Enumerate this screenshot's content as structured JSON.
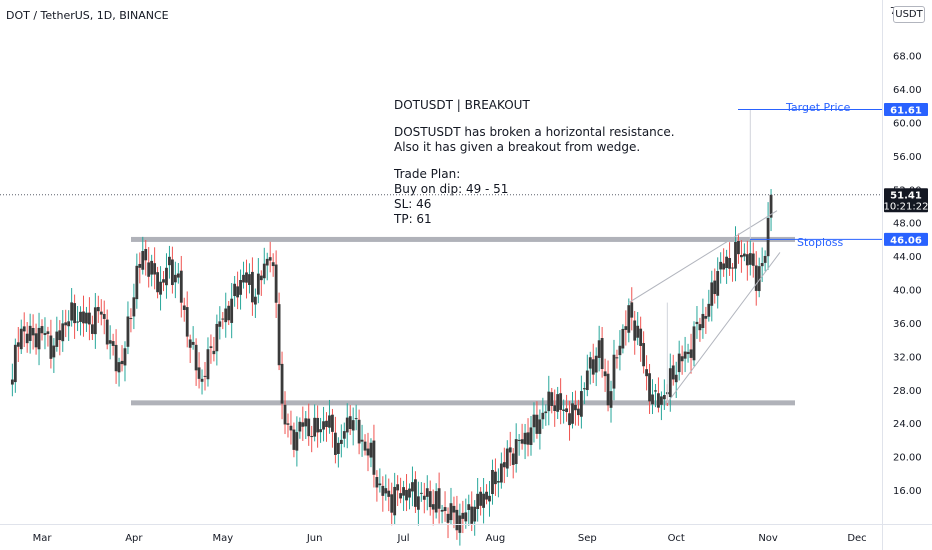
{
  "symbol_title": "DOT / TetherUS, 1D, BINANCE",
  "currency": "USDT",
  "top_tick": "7",
  "note": {
    "heading": "DOTUSDT | BREAKOUT",
    "line1": "DOSTUSDT has broken a horizontal resistance.",
    "line2": "Also it has given a breakout from wedge.",
    "line3": "Trade Plan:",
    "line4": "Buy on dip: 49 - 51",
    "line5": "SL: 46",
    "line6": "TP: 61"
  },
  "labels": {
    "target": "Target Price",
    "stoploss": "Stoploss"
  },
  "price_tags": {
    "target": "61.61",
    "last": "51.41",
    "countdown": "10:21:22",
    "stop": "46.06"
  },
  "colors": {
    "up": "#26a69a",
    "down": "#ef5350",
    "body": "#3a3a3a",
    "accent": "#2962ff",
    "level": "#9598a1"
  },
  "chart_data": {
    "type": "candlestick",
    "title": "DOT / TetherUS, 1D, BINANCE",
    "ylim": [
      12,
      74
    ],
    "y_ticks": [
      "68.00",
      "64.00",
      "60.00",
      "56.00",
      "52.00",
      "48.00",
      "44.00",
      "40.00",
      "36.00",
      "32.00",
      "28.00",
      "24.00",
      "20.00",
      "16.00"
    ],
    "x_ticks": [
      "Mar",
      "Apr",
      "May",
      "Jun",
      "Jul",
      "Aug",
      "Sep",
      "Oct",
      "Nov",
      "Dec"
    ],
    "close_path": [
      [
        "Feb 19",
        30.0
      ],
      [
        "Feb 22",
        35.5
      ],
      [
        "Feb 25",
        34.2
      ],
      [
        "Mar 1",
        35.0
      ],
      [
        "Mar 5",
        33.0
      ],
      [
        "Mar 9",
        36.5
      ],
      [
        "Mar 13",
        37.0
      ],
      [
        "Mar 17",
        36.0
      ],
      [
        "Mar 21",
        37.5
      ],
      [
        "Mar 25",
        32.0
      ],
      [
        "Mar 28",
        31.0
      ],
      [
        "Apr 1",
        40.0
      ],
      [
        "Apr 4",
        44.5
      ],
      [
        "Apr 7",
        42.0
      ],
      [
        "Apr 10",
        40.5
      ],
      [
        "Apr 13",
        43.0
      ],
      [
        "Apr 16",
        41.0
      ],
      [
        "Apr 18",
        37.0
      ],
      [
        "Apr 21",
        32.0
      ],
      [
        "Apr 24",
        29.0
      ],
      [
        "Apr 27",
        33.0
      ],
      [
        "Apr 30",
        36.0
      ],
      [
        "May 4",
        38.5
      ],
      [
        "May 8",
        42.0
      ],
      [
        "May 11",
        39.5
      ],
      [
        "May 14",
        41.5
      ],
      [
        "May 17",
        45.0
      ],
      [
        "May 19",
        38.0
      ],
      [
        "May 21",
        26.0
      ],
      [
        "May 24",
        22.0
      ],
      [
        "May 28",
        24.0
      ],
      [
        "Jun 1",
        23.0
      ],
      [
        "Jun 5",
        24.5
      ],
      [
        "Jun 9",
        21.0
      ],
      [
        "Jun 13",
        25.0
      ],
      [
        "Jun 16",
        22.5
      ],
      [
        "Jun 20",
        20.0
      ],
      [
        "Jun 23",
        16.0
      ],
      [
        "Jun 27",
        15.0
      ],
      [
        "Jul 1",
        16.0
      ],
      [
        "Jul 5",
        15.5
      ],
      [
        "Jul 10",
        15.0
      ],
      [
        "Jul 15",
        13.5
      ],
      [
        "Jul 20",
        12.5
      ],
      [
        "Jul 25",
        14.0
      ],
      [
        "Jul 30",
        16.0
      ],
      [
        "Aug 5",
        20.0
      ],
      [
        "Aug 10",
        22.0
      ],
      [
        "Aug 15",
        24.0
      ],
      [
        "Aug 20",
        27.0
      ],
      [
        "Aug 24",
        25.5
      ],
      [
        "Aug 28",
        25.0
      ],
      [
        "Sep 1",
        30.0
      ],
      [
        "Sep 5",
        33.0
      ],
      [
        "Sep 8",
        27.0
      ],
      [
        "Sep 12",
        34.0
      ],
      [
        "Sep 15",
        37.0
      ],
      [
        "Sep 18",
        35.0
      ],
      [
        "Sep 21",
        29.0
      ],
      [
        "Sep 24",
        26.5
      ],
      [
        "Sep 28",
        28.0
      ],
      [
        "Oct 1",
        31.0
      ],
      [
        "Oct 5",
        32.5
      ],
      [
        "Oct 8",
        35.5
      ],
      [
        "Oct 12",
        38.0
      ],
      [
        "Oct 15",
        42.5
      ],
      [
        "Oct 18",
        43.0
      ],
      [
        "Oct 22",
        44.5
      ],
      [
        "Oct 25",
        44.0
      ],
      [
        "Oct 28",
        41.5
      ],
      [
        "Oct 31",
        44.0
      ],
      [
        "Nov 2",
        51.4
      ]
    ],
    "levels": [
      {
        "name": "resistance",
        "value": 46.06
      },
      {
        "name": "support",
        "value": 26.5
      },
      {
        "name": "Target Price",
        "value": 61.61
      },
      {
        "name": "Stoploss",
        "value": 46.06
      },
      {
        "name": "last price",
        "value": 51.41
      }
    ]
  }
}
